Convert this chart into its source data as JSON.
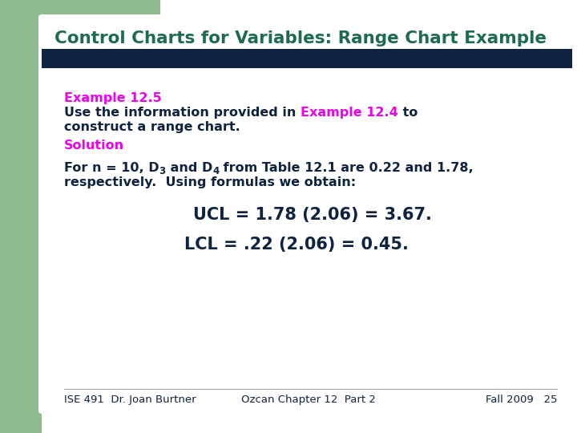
{
  "title": "Control Charts for Variables: Range Chart Example",
  "title_color": "#1e6b52",
  "bg_color": "#ffffff",
  "green_sidebar_color": "#8fbc8f",
  "dark_bar_color": "#0d2340",
  "body_color": "#0d2340",
  "example_label_color": "#ee00ee",
  "solution_color": "#ee00ee",
  "footer_color": "#0d2340",
  "footer_left": "ISE 491  Dr. Joan Burtner",
  "footer_center": "Ozcan Chapter 12  Part 2",
  "footer_right": "Fall 2009   25"
}
